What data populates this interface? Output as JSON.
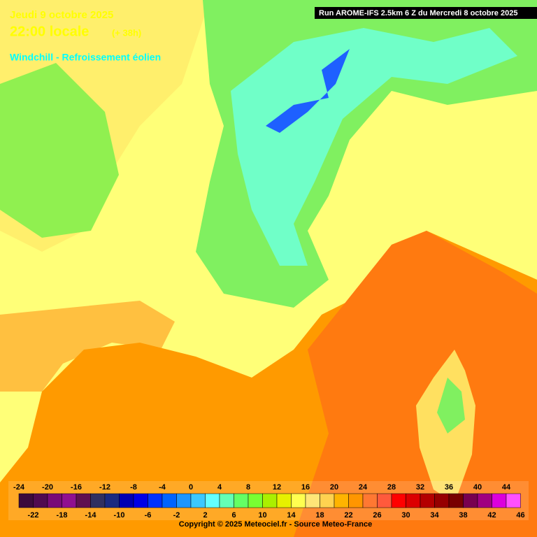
{
  "header": {
    "date": "Jeudi 9 octobre 2025",
    "time": "22:00 locale",
    "lead": "(+ 38h)",
    "product": "Windchill - Refroissement éolien"
  },
  "run_label": "Run AROME-IFS 2.5km 6 Z du Mercredi 8 octobre 2025",
  "legend": {
    "ticks": [
      -24,
      -22,
      -20,
      -18,
      -16,
      -14,
      -12,
      -10,
      -8,
      -6,
      -4,
      -2,
      0,
      2,
      4,
      6,
      8,
      10,
      12,
      14,
      16,
      18,
      20,
      22,
      24,
      26,
      28,
      30,
      32,
      34,
      36,
      38,
      40,
      42,
      44,
      46
    ],
    "colors": [
      "#3c0a3c",
      "#500a50",
      "#780a78",
      "#901090",
      "#601050",
      "#303060",
      "#1a2a80",
      "#0000b4",
      "#0000e6",
      "#0032ff",
      "#0064ff",
      "#1e96ff",
      "#3cc8ff",
      "#64ffff",
      "#64ffb4",
      "#64ff64",
      "#78ff32",
      "#aaf000",
      "#e6f000",
      "#ffff50",
      "#ffe678",
      "#ffd250",
      "#ffb400",
      "#ff9600",
      "#ff7832",
      "#ff5a3c",
      "#ff0000",
      "#dc0000",
      "#b40000",
      "#960000",
      "#780000",
      "#780050",
      "#a00080",
      "#dc00dc",
      "#ff50ff"
    ]
  },
  "copyright": "Copyright © 2025 Meteociel.fr - Source Meteo-France"
}
